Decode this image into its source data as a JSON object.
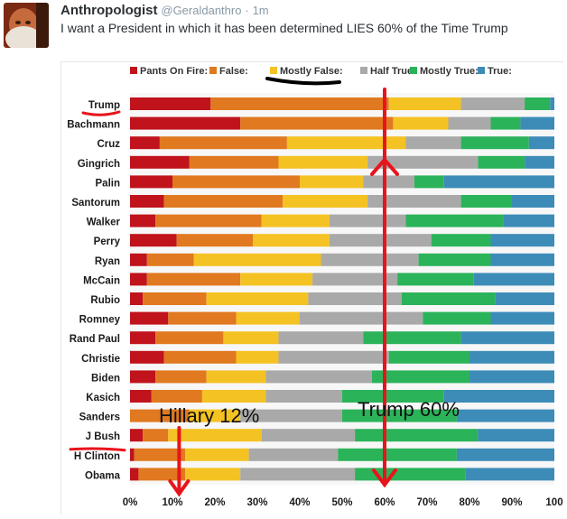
{
  "tweet": {
    "author": "Anthropologist",
    "handle": "@Geraldanthro",
    "separator": "·",
    "time": "1m",
    "text": "I want a President in which it has been determined LIES 60% of the Time Trump"
  },
  "chart_data": {
    "type": "bar",
    "stacked": true,
    "horizontal": true,
    "xlim": [
      0,
      100
    ],
    "x_ticks": [
      "0%",
      "10%",
      "20%",
      "30%",
      "40%",
      "50%",
      "60%",
      "70%",
      "80%",
      "90%",
      "100"
    ],
    "legend": [
      {
        "label": "Pants On Fire:",
        "color": "#c0131c"
      },
      {
        "label": "False:",
        "color": "#e0791f"
      },
      {
        "label": "Mostly False:",
        "color": "#f4c223"
      },
      {
        "label": "Half True:",
        "color": "#a9a9a9"
      },
      {
        "label": "Mostly True:",
        "color": "#2bb35a"
      },
      {
        "label": "True:",
        "color": "#3d8cb8"
      }
    ],
    "categories": [
      "Trump",
      "Bachmann",
      "Cruz",
      "Gingrich",
      "Palin",
      "Santorum",
      "Walker",
      "Perry",
      "Ryan",
      "McCain",
      "Rubio",
      "Romney",
      "Rand Paul",
      "Christie",
      "Biden",
      "Kasich",
      "Sanders",
      "J Bush",
      "H Clinton",
      "Obama"
    ],
    "series": [
      {
        "name": "Pants On Fire",
        "values": [
          19,
          26,
          7,
          14,
          10,
          8,
          6,
          11,
          4,
          4,
          3,
          9,
          6,
          8,
          6,
          5,
          0,
          3,
          1,
          2
        ]
      },
      {
        "name": "False",
        "values": [
          42,
          36,
          30,
          21,
          30,
          28,
          25,
          18,
          11,
          22,
          15,
          16,
          16,
          17,
          12,
          12,
          14,
          6,
          12,
          11
        ]
      },
      {
        "name": "Mostly False",
        "values": [
          17,
          13,
          28,
          21,
          15,
          20,
          16,
          18,
          30,
          17,
          24,
          15,
          13,
          10,
          14,
          15,
          12,
          22,
          15,
          13
        ]
      },
      {
        "name": "Half True",
        "values": [
          15,
          10,
          13,
          26,
          12,
          22,
          18,
          24,
          23,
          20,
          22,
          29,
          20,
          26,
          25,
          18,
          24,
          22,
          21,
          27
        ]
      },
      {
        "name": "Mostly True",
        "values": [
          6,
          7,
          16,
          11,
          7,
          12,
          23,
          14,
          17,
          18,
          22,
          16,
          23,
          19,
          23,
          24,
          27,
          29,
          28,
          26
        ]
      },
      {
        "name": "True",
        "values": [
          1,
          8,
          6,
          7,
          26,
          10,
          12,
          15,
          15,
          19,
          14,
          15,
          22,
          20,
          20,
          26,
          23,
          18,
          23,
          21
        ]
      }
    ],
    "annotations": [
      {
        "text": "Hillary 12%",
        "target": "H Clinton",
        "value": 12
      },
      {
        "text": "Trump 60%",
        "target": "Trump",
        "value": 60
      }
    ],
    "underlined_labels": [
      "Trump",
      "H Clinton",
      "Mostly False:"
    ]
  }
}
